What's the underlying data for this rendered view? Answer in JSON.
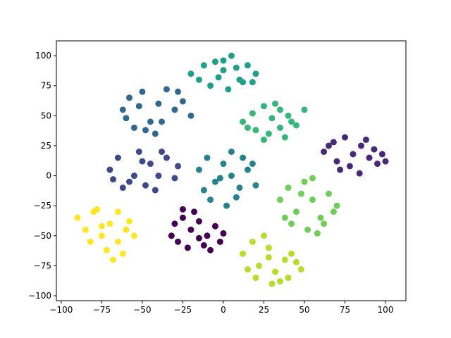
{
  "chart_data": {
    "type": "scatter",
    "xlim": [
      -103,
      112.6
    ],
    "ylim": [
      -104.1,
      112.4
    ],
    "xticks": [
      {
        "value": -100,
        "label": "−100"
      },
      {
        "value": -75,
        "label": "−75"
      },
      {
        "value": -50,
        "label": "−50"
      },
      {
        "value": -25,
        "label": "−25"
      },
      0,
      25,
      50,
      75,
      100
    ],
    "yticks": [
      {
        "value": -100,
        "label": "−100"
      },
      {
        "value": -75,
        "label": "−75"
      },
      {
        "value": -50,
        "label": "−50"
      },
      {
        "value": -25,
        "label": "−25"
      },
      0,
      25,
      50,
      75,
      100
    ],
    "series": [
      {
        "color": "#440154",
        "x": [
          -30,
          -25,
          -20,
          -15,
          -10,
          -5,
          0,
          -28,
          -22,
          -12,
          -18,
          -8,
          -32,
          -2,
          -25,
          -15
        ],
        "y": [
          -40,
          -35,
          -45,
          -38,
          -50,
          -42,
          -48,
          -55,
          -60,
          -58,
          -30,
          -62,
          -50,
          -55,
          -28,
          -52
        ]
      },
      {
        "color": "#482878",
        "x": [
          62,
          68,
          75,
          80,
          85,
          90,
          95,
          100,
          72,
          78,
          88,
          93,
          70,
          84,
          65,
          98
        ],
        "y": [
          20,
          28,
          32,
          18,
          25,
          15,
          10,
          12,
          5,
          8,
          30,
          22,
          12,
          2,
          25,
          18
        ]
      },
      {
        "color": "#3e4989",
        "x": [
          -70,
          -65,
          -58,
          -52,
          -45,
          -40,
          -35,
          -28,
          -62,
          -55,
          -48,
          -42,
          -68,
          -38,
          -50,
          -30
        ],
        "y": [
          5,
          15,
          -5,
          20,
          10,
          0,
          15,
          8,
          -10,
          0,
          -8,
          -12,
          -3,
          20,
          12,
          -2
        ]
      },
      {
        "color": "#31688e",
        "x": [
          -62,
          -58,
          -50,
          -45,
          -40,
          -35,
          -30,
          -25,
          -55,
          -48,
          -42,
          -20,
          -60,
          -38,
          -52,
          -28
        ],
        "y": [
          55,
          65,
          70,
          45,
          60,
          72,
          55,
          62,
          40,
          38,
          35,
          50,
          48,
          45,
          58,
          70
        ]
      },
      {
        "color": "#26828e",
        "x": [
          -15,
          -10,
          -5,
          0,
          5,
          10,
          15,
          20,
          -8,
          2,
          8,
          12,
          -12,
          18,
          5,
          -2
        ],
        "y": [
          5,
          15,
          -5,
          10,
          0,
          -10,
          5,
          -8,
          -20,
          -25,
          -18,
          15,
          -12,
          10,
          20,
          -2
        ]
      },
      {
        "color": "#1f9e89",
        "x": [
          -20,
          -12,
          -5,
          0,
          5,
          10,
          15,
          20,
          -8,
          3,
          12,
          -15,
          8,
          0,
          18,
          -3
        ],
        "y": [
          85,
          92,
          95,
          88,
          100,
          80,
          92,
          85,
          75,
          72,
          78,
          80,
          90,
          96,
          78,
          82
        ]
      },
      {
        "color": "#35b779",
        "x": [
          12,
          18,
          25,
          30,
          35,
          40,
          45,
          50,
          20,
          28,
          38,
          15,
          32,
          42,
          25,
          35
        ],
        "y": [
          45,
          52,
          58,
          48,
          55,
          50,
          42,
          55,
          38,
          35,
          32,
          40,
          60,
          45,
          30,
          40
        ]
      },
      {
        "color": "#6ece58",
        "x": [
          35,
          40,
          45,
          50,
          55,
          60,
          65,
          70,
          42,
          52,
          58,
          38,
          48,
          62,
          55,
          68
        ],
        "y": [
          -20,
          -10,
          -30,
          -5,
          -20,
          -35,
          -15,
          -25,
          -40,
          -45,
          -48,
          -35,
          -15,
          -40,
          -2,
          -30
        ]
      },
      {
        "color": "#b5de2b",
        "x": [
          12,
          18,
          22,
          28,
          32,
          38,
          42,
          48,
          20,
          30,
          35,
          25,
          40,
          45,
          15,
          28
        ],
        "y": [
          -65,
          -55,
          -75,
          -60,
          -80,
          -70,
          -65,
          -78,
          -85,
          -90,
          -88,
          -50,
          -85,
          -72,
          -78,
          -68
        ]
      },
      {
        "color": "#fde725",
        "x": [
          -90,
          -85,
          -80,
          -75,
          -70,
          -65,
          -60,
          -55,
          -82,
          -72,
          -62,
          -78,
          -68,
          -58,
          -75,
          -65
        ],
        "y": [
          -35,
          -45,
          -30,
          -50,
          -40,
          -55,
          -45,
          -50,
          -55,
          -62,
          -65,
          -28,
          -70,
          -38,
          -42,
          -30
        ]
      }
    ]
  }
}
